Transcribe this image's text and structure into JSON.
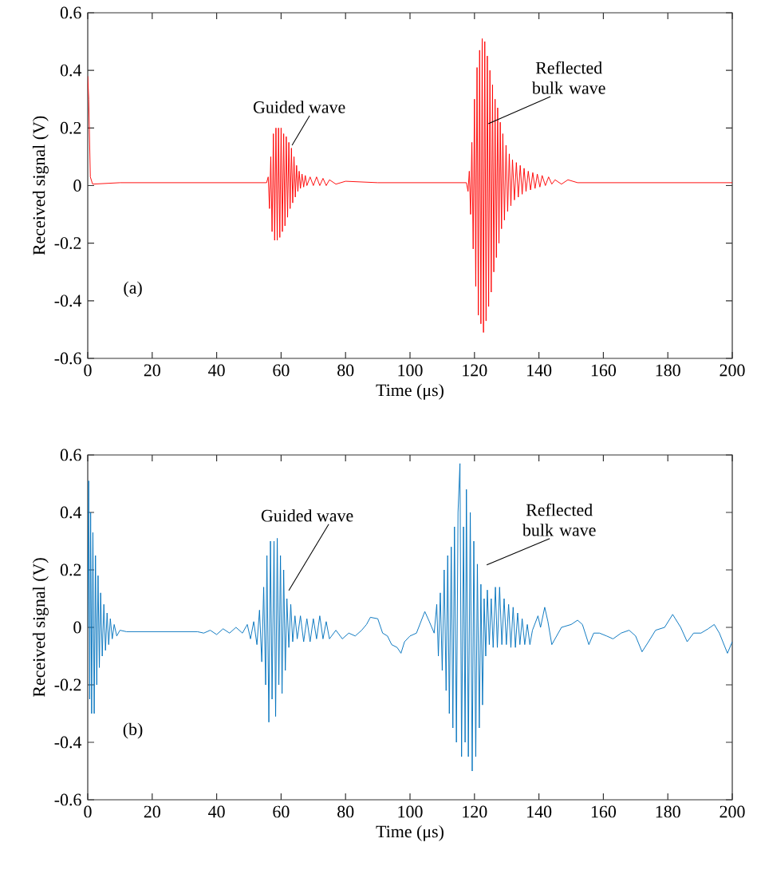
{
  "chart_data": [
    {
      "type": "line",
      "xlabel": "Time (μs)",
      "ylabel": "Received signal (V)",
      "xlim": [
        0,
        200
      ],
      "ylim": [
        -0.6,
        0.6
      ],
      "xticks": [
        0,
        20,
        40,
        60,
        80,
        100,
        120,
        140,
        160,
        180,
        200
      ],
      "yticks": [
        -0.6,
        -0.4,
        -0.2,
        0,
        0.2,
        0.4,
        0.6
      ],
      "annotations": [
        {
          "text": "Guided wave",
          "x": 63.4,
          "y": 0.14
        },
        {
          "text": "Reflected bulk wave",
          "x": 124.3,
          "y": 0.215
        },
        "(a)"
      ],
      "series": [
        {
          "color": "#ff0000",
          "x": [
            0,
            0.3,
            0.8,
            1.5,
            10,
            20,
            30,
            40,
            50,
            55.5,
            56.0,
            56.4,
            56.8,
            57.2,
            57.6,
            58.0,
            58.4,
            58.8,
            59.2,
            59.6,
            60.0,
            60.4,
            60.8,
            61.2,
            61.6,
            62.0,
            62.4,
            62.8,
            63.2,
            63.6,
            64.0,
            64.4,
            64.8,
            65.2,
            65.6,
            66.0,
            66.5,
            67.0,
            67.5,
            68.0,
            69,
            70,
            71,
            72,
            73,
            74,
            75,
            77,
            80,
            90,
            100,
            117.5,
            118,
            118.4,
            118.8,
            119.2,
            119.6,
            120.0,
            120.4,
            120.8,
            121.2,
            121.6,
            122.0,
            122.4,
            122.8,
            123.2,
            123.6,
            124.0,
            124.4,
            124.8,
            125.2,
            125.6,
            126.0,
            126.4,
            126.8,
            127.2,
            127.6,
            128.0,
            128.4,
            128.8,
            129.3,
            129.8,
            130.3,
            130.8,
            131.3,
            131.8,
            132.4,
            133.0,
            133.6,
            134.2,
            134.8,
            135.4,
            136.0,
            136.7,
            137.4,
            138.1,
            138.8,
            139.5,
            140.3,
            141,
            142,
            143,
            144,
            145,
            147,
            149,
            152,
            170,
            200
          ],
          "values": [
            0.38,
            0.3,
            0.03,
            0.005,
            0.01,
            0.01,
            0.01,
            0.01,
            0.01,
            0.01,
            0.03,
            -0.08,
            0.1,
            -0.16,
            0.18,
            -0.19,
            0.2,
            -0.19,
            0.2,
            -0.18,
            0.2,
            -0.16,
            0.18,
            -0.14,
            0.17,
            -0.11,
            0.15,
            -0.08,
            0.13,
            -0.06,
            0.1,
            -0.04,
            0.07,
            -0.02,
            0.05,
            -0.01,
            0.04,
            -0.005,
            0.035,
            0,
            0.03,
            0,
            0.03,
            0,
            0.025,
            0,
            0.02,
            0.005,
            0.015,
            0.01,
            0.01,
            0.01,
            -0.02,
            0.05,
            -0.1,
            0.15,
            -0.22,
            0.3,
            -0.35,
            0.41,
            -0.45,
            0.47,
            -0.48,
            0.51,
            -0.51,
            0.5,
            -0.47,
            0.45,
            -0.42,
            0.4,
            -0.37,
            0.35,
            -0.3,
            0.3,
            -0.25,
            0.27,
            -0.2,
            0.22,
            -0.15,
            0.18,
            -0.12,
            0.14,
            -0.09,
            0.11,
            -0.07,
            0.09,
            -0.05,
            0.08,
            -0.04,
            0.07,
            -0.03,
            0.06,
            -0.02,
            0.05,
            -0.015,
            0.045,
            -0.01,
            0.04,
            -0.005,
            0.035,
            0,
            0.03,
            0.005,
            0.02,
            0.005,
            0.02,
            0.01,
            0.01,
            0.01
          ]
        }
      ]
    },
    {
      "type": "line",
      "xlabel": "Time (μs)",
      "ylabel": "Received signal (V)",
      "xlim": [
        0,
        200
      ],
      "ylim": [
        -0.6,
        0.6
      ],
      "xticks": [
        0,
        20,
        40,
        60,
        80,
        100,
        120,
        140,
        160,
        180,
        200
      ],
      "yticks": [
        -0.6,
        -0.4,
        -0.2,
        0,
        0.2,
        0.4,
        0.6
      ],
      "annotations": [
        "Guided wave",
        "Reflected bulk wave",
        "(b)"
      ],
      "series": [
        {
          "color": "#0072bd",
          "x": [
            0,
            0.3,
            0.6,
            0.9,
            1.2,
            1.6,
            2.0,
            2.4,
            2.8,
            3.2,
            3.6,
            4.0,
            4.5,
            5.0,
            5.5,
            6.0,
            6.5,
            7.0,
            7.6,
            8.2,
            9,
            10,
            12,
            20,
            34,
            36,
            38,
            40,
            42,
            44,
            46,
            48,
            49.5,
            50.5,
            51.5,
            52.5,
            53.3,
            54,
            54.6,
            55.2,
            55.6,
            56.2,
            56.7,
            57.2,
            57.8,
            58.3,
            58.8,
            59.3,
            59.8,
            60.3,
            60.8,
            61.3,
            61.8,
            62.4,
            63.0,
            63.6,
            64.3,
            65,
            66,
            67,
            68,
            69,
            70,
            71,
            72,
            73,
            74,
            75,
            77,
            79,
            81,
            83,
            85,
            86.5,
            87.7,
            90,
            91.5,
            93,
            94.3,
            96,
            97.2,
            98.3,
            100,
            102,
            104.6,
            106,
            107.5,
            108.3,
            108.8,
            109.4,
            110,
            110.6,
            111.2,
            111.7,
            112.2,
            112.8,
            113.3,
            113.8,
            114.4,
            114.9,
            115.5,
            116,
            116.6,
            117.1,
            117.5,
            118.1,
            118.7,
            119.3,
            119.8,
            120.4,
            120.9,
            121.5,
            122,
            122.5,
            123,
            123.5,
            124,
            124.6,
            125.2,
            125.8,
            126.5,
            127.1,
            127.8,
            128.5,
            129.2,
            129.9,
            130.6,
            131.3,
            132,
            132.7,
            133.4,
            134.1,
            134.8,
            135.6,
            136.4,
            137.2,
            138,
            139.7,
            140.5,
            141.8,
            142.8,
            144,
            147,
            150,
            152,
            153.5,
            155.5,
            157,
            158.8,
            161,
            163,
            165.5,
            168,
            170,
            172,
            174,
            176.2,
            179,
            181.5,
            184,
            186,
            188,
            190.3,
            192.5,
            194.4,
            196,
            198.5,
            200
          ],
          "values": [
            0.0,
            0.51,
            -0.25,
            0.4,
            -0.3,
            0.33,
            -0.3,
            0.25,
            -0.2,
            0.18,
            -0.14,
            0.12,
            -0.1,
            0.08,
            -0.08,
            0.05,
            -0.06,
            0.03,
            -0.04,
            0.01,
            -0.03,
            -0.01,
            -0.015,
            -0.015,
            -0.015,
            -0.02,
            -0.01,
            -0.025,
            -0.005,
            -0.02,
            0.0,
            -0.02,
            0.01,
            -0.04,
            0.02,
            -0.06,
            0.06,
            -0.12,
            0.14,
            -0.2,
            0.25,
            -0.33,
            0.3,
            -0.25,
            0.3,
            -0.31,
            0.31,
            -0.2,
            0.25,
            -0.23,
            0.2,
            -0.15,
            0.1,
            -0.07,
            0.08,
            -0.05,
            0.04,
            -0.04,
            0.04,
            -0.05,
            0.03,
            -0.05,
            0.03,
            -0.04,
            0.04,
            -0.04,
            0.02,
            -0.04,
            -0.01,
            -0.04,
            -0.02,
            -0.03,
            -0.01,
            0.01,
            0.035,
            0.03,
            -0.02,
            -0.03,
            -0.06,
            -0.07,
            -0.09,
            -0.05,
            -0.03,
            -0.02,
            0.055,
            0.02,
            -0.02,
            0.08,
            -0.1,
            0.12,
            -0.15,
            0.2,
            -0.22,
            0.25,
            -0.3,
            0.28,
            -0.35,
            0.35,
            -0.4,
            0.4,
            0.57,
            -0.45,
            0.35,
            -0.4,
            0.48,
            -0.45,
            0.4,
            -0.5,
            0.3,
            -0.45,
            0.22,
            -0.35,
            0.15,
            -0.27,
            0.1,
            -0.1,
            0.13,
            -0.06,
            0.1,
            -0.07,
            0.14,
            -0.07,
            0.14,
            -0.06,
            0.1,
            -0.06,
            0.08,
            -0.07,
            0.07,
            -0.07,
            0.05,
            -0.06,
            0.03,
            -0.06,
            0.01,
            -0.06,
            -0.01,
            0.04,
            0.0,
            0.07,
            0.02,
            -0.06,
            0.0,
            0.01,
            0.025,
            0.01,
            -0.06,
            -0.02,
            -0.02,
            -0.03,
            -0.04,
            -0.02,
            -0.01,
            -0.03,
            -0.085,
            -0.05,
            -0.01,
            0.0,
            0.045,
            0.0,
            -0.05,
            -0.02,
            -0.02,
            -0.005,
            0.01,
            -0.02,
            -0.09,
            -0.05
          ]
        }
      ]
    }
  ]
}
